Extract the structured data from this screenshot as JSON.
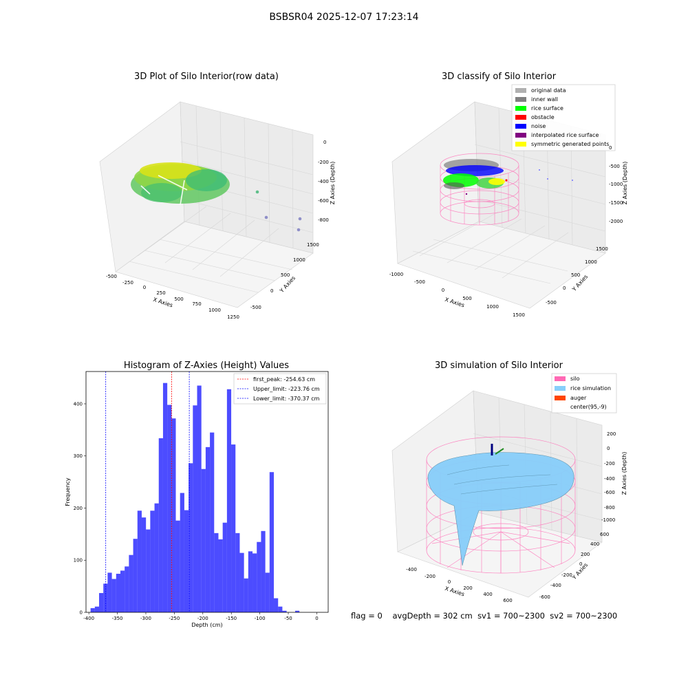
{
  "figure_title": "BSBSR04 2025-12-07 17:23:14",
  "footer": {
    "flag": "flag = 0",
    "avg_depth": "avgDepth = 302 cm",
    "sv1": "sv1 = 700~2300",
    "sv2": "sv2 = 700~2300"
  },
  "colors": {
    "hist_bar": "#0000ff",
    "peak_line": "#ff0000",
    "limit_line": "#0000ff",
    "silo": "#ff69b4",
    "rice": "#87cefa",
    "auger": "#ff4500",
    "original": "#b0b0b0",
    "inner_wall": "#808080",
    "rice_surface": "#00ff00",
    "obstacle": "#ff0000",
    "noise": "#0000ff",
    "interp": "#800080",
    "symmetric": "#ffff00"
  },
  "chart_data": [
    {
      "type": "scatter",
      "title": "3D Plot of Silo Interior(row data)",
      "xlabel": "X Axies",
      "ylabel": "Y Axies",
      "zlabel": "Z Axies (Depth)",
      "x_ticks": [
        "-500",
        "-250",
        "0",
        "250",
        "500",
        "750",
        "1000",
        "1250"
      ],
      "y_ticks": [
        "-500",
        "0",
        "500",
        "1000",
        "1500"
      ],
      "z_ticks": [
        "0",
        "-200",
        "-400",
        "-600",
        "-800"
      ],
      "outliers": [
        {
          "x": 1000,
          "y": 0,
          "z": -650
        },
        {
          "x": 1250,
          "y": -400,
          "z": -850
        },
        {
          "x": 1250,
          "y": -500,
          "z": -900
        },
        {
          "x": 1100,
          "y": 0,
          "z": -850
        }
      ]
    },
    {
      "type": "scatter",
      "title": "3D classify of Silo Interior",
      "xlabel": "X Axies",
      "ylabel": "Y Axies",
      "zlabel": "Z Axies (Depth)",
      "x_ticks": [
        "-1000",
        "-500",
        "0",
        "500",
        "1000",
        "1500"
      ],
      "y_ticks": [
        "-500",
        "0",
        "500",
        "1000",
        "1500"
      ],
      "z_ticks": [
        "0",
        "-500",
        "-1000",
        "-1500",
        "-2000"
      ],
      "legend": [
        "original data",
        "inner wall",
        "rice surface",
        "obstacle",
        "noise",
        "interpolated rice surface",
        "symmetric generated points"
      ],
      "legend_loc": "upper right"
    },
    {
      "type": "bar",
      "title": "Histogram of Z-Axies (Height) Values",
      "xlabel": "Depth (cm)",
      "ylabel": "Frequency",
      "xlim": [
        -405,
        20
      ],
      "ylim": [
        0,
        462
      ],
      "x_ticks": [
        -400,
        -350,
        -300,
        -250,
        -200,
        -150,
        -100,
        -50,
        0
      ],
      "y_ticks": [
        0,
        100,
        200,
        300,
        400
      ],
      "bin_edges_start": -397,
      "bin_width": 7.48,
      "values": [
        8,
        11,
        37,
        55,
        76,
        64,
        74,
        80,
        88,
        110,
        141,
        195,
        182,
        159,
        195,
        209,
        334,
        440,
        398,
        372,
        176,
        229,
        196,
        286,
        397,
        435,
        275,
        317,
        345,
        152,
        140,
        172,
        428,
        322,
        152,
        114,
        65,
        117,
        113,
        135,
        156,
        76,
        269,
        27,
        11,
        3,
        0,
        0,
        3
      ],
      "lines": [
        {
          "label": "first_peak: -254.63 cm",
          "x": -254.63,
          "color": "#ff0000"
        },
        {
          "label": "Upper_limit: -223.76 cm",
          "x": -223.76,
          "color": "#0000ff"
        },
        {
          "label": "Lower_limit: -370.37 cm",
          "x": -370.37,
          "color": "#0000ff"
        }
      ],
      "legend_loc": "upper right"
    },
    {
      "type": "area",
      "title": "3D simulation of Silo Interior",
      "xlabel": "X Axies",
      "ylabel": "Y Axies",
      "zlabel": "Z Axies (Depth)",
      "x_ticks": [
        "-400",
        "-200",
        "0",
        "200",
        "400",
        "600"
      ],
      "y_ticks": [
        "-600",
        "-400",
        "-200",
        "0",
        "200",
        "400",
        "600"
      ],
      "z_ticks": [
        "200",
        "0",
        "-200",
        "-400",
        "-600",
        "-800",
        "-1000"
      ],
      "legend": [
        "silo",
        "rice simulation",
        "auger",
        "center(95,-9)"
      ],
      "legend_loc": "upper right"
    }
  ]
}
